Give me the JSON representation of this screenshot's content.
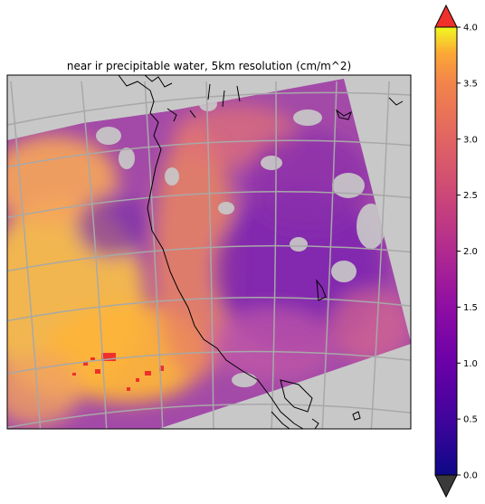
{
  "chart_data": {
    "type": "heatmap",
    "title": "near ir precipitable water, 5km resolution (cm/m^2)",
    "xlabel": "",
    "ylabel": "",
    "colorbar": {
      "range": [
        0.0,
        4.0
      ],
      "ticks": [
        0.0,
        0.5,
        1.0,
        1.5,
        2.0,
        2.5,
        3.0,
        3.5,
        4.0
      ],
      "tick_labels": [
        "0.0",
        "0.5",
        "1.0",
        "1.5",
        "2.0",
        "2.5",
        "3.0",
        "3.5",
        "4.0"
      ],
      "extend": "both",
      "colormap": "plasma",
      "under_color": "#3a3a3a",
      "over_color": "#f0302a"
    },
    "map": {
      "background_color": "#c8c8c8",
      "gridlines": true,
      "gridline_color": "#a8a8a8",
      "coastlines": true,
      "coastline_color": "#000000",
      "missing_data_color": "#c8c8c8",
      "field_summary": {
        "southwest_region": "high values ~3.0-4.0 with saturated >4.0 patches",
        "central_band": "moderate values ~2.0-3.0",
        "north_and_east": "low values ~0.8-1.5",
        "colorbar_low_swatch": "0.0",
        "colorbar_high_swatch": "4.0"
      }
    }
  }
}
